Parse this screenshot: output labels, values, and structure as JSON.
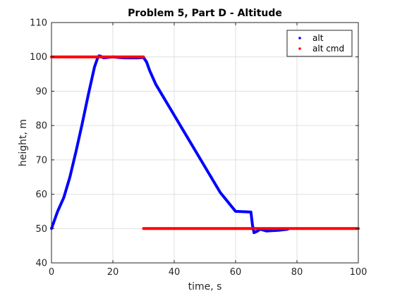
{
  "chart_data": {
    "type": "line",
    "title": "Problem 5, Part D - Altitude",
    "xlabel": "time, s",
    "ylabel": "height, m",
    "xlim": [
      0,
      100
    ],
    "ylim": [
      40,
      110
    ],
    "xticks": [
      0,
      20,
      40,
      60,
      80,
      100
    ],
    "yticks": [
      40,
      50,
      60,
      70,
      80,
      90,
      100,
      110
    ],
    "grid": true,
    "legend_position": "top-right",
    "series": [
      {
        "name": "alt",
        "color": "#0000ff",
        "segments": [
          {
            "x": [
              0,
              1,
              2,
              4,
              6,
              8,
              10,
              12,
              14,
              15,
              15.5,
              16,
              17,
              18,
              20,
              22,
              24,
              26,
              28,
              30,
              31,
              32,
              34,
              36,
              40,
              45,
              50,
              55,
              60,
              65,
              65.5,
              66,
              67,
              68,
              70,
              72,
              74,
              76,
              77
            ],
            "y": [
              50,
              52.5,
              55,
              59,
              65,
              72.5,
              80.5,
              89,
              97,
              99.6,
              100.3,
              100.2,
              99.7,
              99.8,
              100,
              99.8,
              99.7,
              99.7,
              99.7,
              99.8,
              98.5,
              96,
              92,
              89,
              83,
              75.5,
              68,
              60.5,
              55,
              54.8,
              51,
              48.8,
              49.2,
              49.8,
              49.3,
              49.4,
              49.5,
              49.7,
              49.8
            ]
          }
        ]
      },
      {
        "name": "alt cmd",
        "color": "#ff0000",
        "segments": [
          {
            "x": [
              0,
              30
            ],
            "y": [
              100,
              100
            ]
          },
          {
            "x": [
              30,
              100
            ],
            "y": [
              50,
              50
            ]
          }
        ]
      }
    ]
  }
}
